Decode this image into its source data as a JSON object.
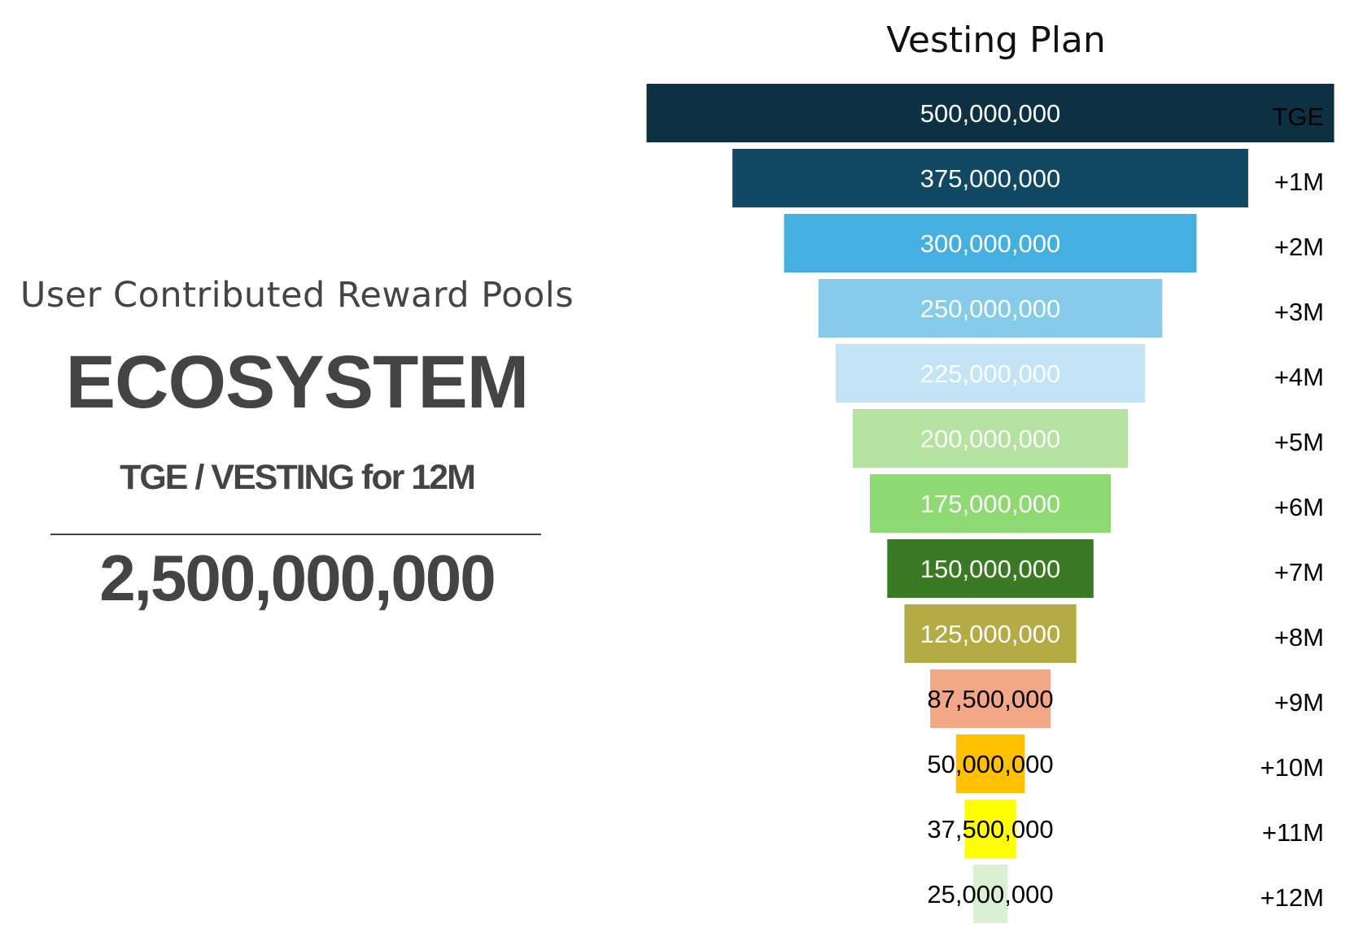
{
  "panel": {
    "pool_label": "User Contributed Reward Pools",
    "headline": "ECOSYSTEM",
    "subtitle": "TGE / VESTING for 12M",
    "total": "2,500,000,000"
  },
  "chart_data": {
    "type": "funnel",
    "title": "Vesting Plan",
    "categories": [
      "TGE",
      "+1M",
      "+2M",
      "+3M",
      "+4M",
      "+5M",
      "+6M",
      "+7M",
      "+8M",
      "+9M",
      "+10M",
      "+11M",
      "+12M"
    ],
    "values": [
      500000000,
      375000000,
      300000000,
      250000000,
      225000000,
      200000000,
      175000000,
      150000000,
      125000000,
      87500000,
      50000000,
      37500000,
      25000000
    ],
    "value_labels": [
      "500,000,000",
      "375,000,000",
      "300,000,000",
      "250,000,000",
      "225,000,000",
      "200,000,000",
      "175,000,000",
      "150,000,000",
      "125,000,000",
      "87,500,000",
      "50,000,000",
      "37,500,000",
      "25,000,000"
    ],
    "colors": [
      "#0d3142",
      "#114964",
      "#45afe0",
      "#86cbea",
      "#c2e4f4",
      "#b4e3a0",
      "#8fd973",
      "#3a7a24",
      "#b5ab45",
      "#f2a886",
      "#ffc000",
      "#ffff00",
      "#d9f0d3"
    ],
    "label_colors": [
      "#ffffff",
      "#ffffff",
      "#ffffff",
      "#ffffff",
      "#ffffff",
      "#ffffff",
      "#ffffff",
      "#ffffff",
      "#ffffff",
      "#000000",
      "#000000",
      "#000000",
      "#000000"
    ],
    "xlim": [
      0,
      500000000
    ],
    "legend": "none",
    "grid": false
  }
}
